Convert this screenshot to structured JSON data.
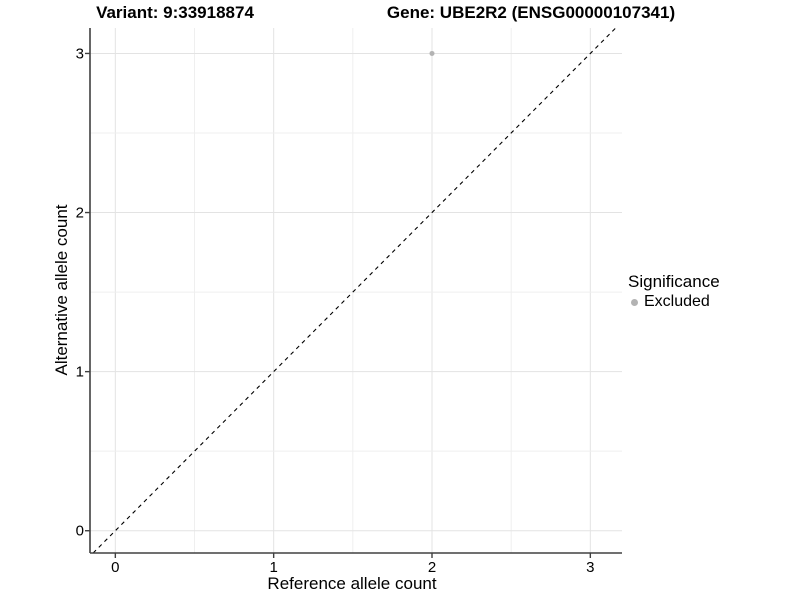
{
  "chart_data": {
    "type": "scatter",
    "titles": {
      "left": "Variant: 9:33918874",
      "right": "Gene: UBE2R2 (ENSG00000107341)"
    },
    "xlabel": "Reference allele count",
    "ylabel": "Alternative allele count",
    "xlim": [
      -0.16,
      3.2
    ],
    "ylim": [
      -0.14,
      3.16
    ],
    "xticks": [
      0,
      1,
      2,
      3
    ],
    "yticks": [
      0,
      1,
      2,
      3
    ],
    "minor_grid_step": 0.5,
    "grid": "major and minor gridlines, light gray on white panel",
    "points": [
      {
        "x": 2,
        "y": 3,
        "series": "Excluded"
      }
    ],
    "series": [
      {
        "name": "Excluded",
        "color": "#b3b3b3"
      }
    ],
    "reference_line": {
      "kind": "identity y=x",
      "style": "dashed",
      "color": "#000000"
    },
    "legend": {
      "title": "Significance",
      "position": "right",
      "entries": [
        {
          "label": "Excluded",
          "color": "#b3b3b3"
        }
      ]
    },
    "colors": {
      "grid_major": "#e3e3e3",
      "grid_minor": "#efefef",
      "axis": "#404040",
      "text": "#000000",
      "background": "#ffffff"
    }
  }
}
